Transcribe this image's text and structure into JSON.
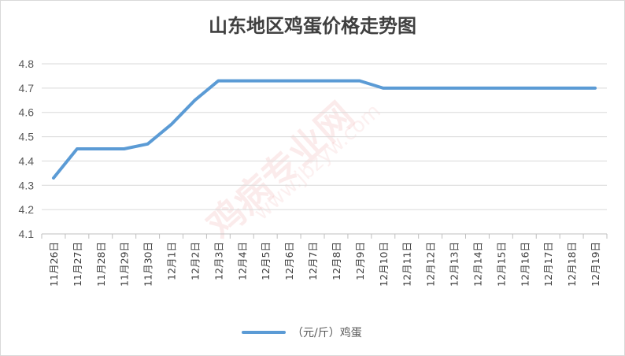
{
  "chart_data": {
    "type": "line",
    "title": "山东地区鸡蛋价格走势图",
    "categories": [
      "11月26日",
      "11月27日",
      "11月28日",
      "11月29日",
      "11月30日",
      "12月1日",
      "12月2日",
      "12月3日",
      "12月4日",
      "12月5日",
      "12月6日",
      "12月7日",
      "12月8日",
      "12月9日",
      "12月10日",
      "12月11日",
      "12月12日",
      "12月13日",
      "12月14日",
      "12月15日",
      "12月16日",
      "12月17日",
      "12月18日",
      "12月19日"
    ],
    "series": [
      {
        "name": "（元/斤）鸡蛋",
        "values": [
          4.33,
          4.45,
          4.45,
          4.45,
          4.47,
          4.55,
          4.65,
          4.73,
          4.73,
          4.73,
          4.73,
          4.73,
          4.73,
          4.73,
          4.7,
          4.7,
          4.7,
          4.7,
          4.7,
          4.7,
          4.7,
          4.7,
          4.7,
          4.7
        ]
      }
    ],
    "y_ticks": [
      "4.1",
      "4.2",
      "4.3",
      "4.4",
      "4.5",
      "4.6",
      "4.7",
      "4.8"
    ],
    "ylim": [
      4.1,
      4.8
    ],
    "grid": true,
    "legend": "bottom",
    "line_color": "#5b9bd5"
  },
  "watermark": {
    "main": "鸡病专业网",
    "url": "www.jbzyw.com"
  }
}
